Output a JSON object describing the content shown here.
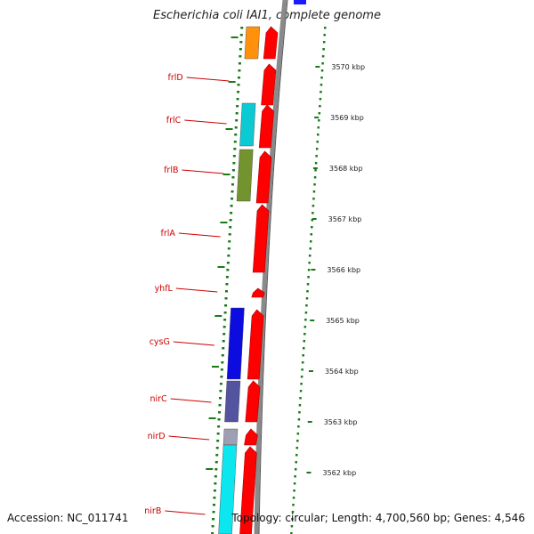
{
  "title": "Escherichia coli IAI1, complete genome",
  "footer": {
    "accession": "Accession: NC_011741",
    "summary": "Topology: circular; Length: 4,700,560 bp; Genes: 4,546"
  },
  "colors": {
    "strand": "#ff0000",
    "backbone": "#8a8a8a",
    "tick": "#1a7a1a",
    "label": "#cc0000"
  },
  "scale": {
    "unit": "kbp",
    "ticks": [
      {
        "kbp": 3570,
        "label": "3570 kbp"
      },
      {
        "kbp": 3569,
        "label": "3569 kbp"
      },
      {
        "kbp": 3568,
        "label": "3568 kbp"
      },
      {
        "kbp": 3567,
        "label": "3567 kbp"
      },
      {
        "kbp": 3566,
        "label": "3566 kbp"
      },
      {
        "kbp": 3565,
        "label": "3565 kbp"
      },
      {
        "kbp": 3564,
        "label": "3564 kbp"
      },
      {
        "kbp": 3563,
        "label": "3563 kbp"
      },
      {
        "kbp": 3562,
        "label": "3562 kbp"
      }
    ]
  },
  "genes": [
    {
      "name": "frlD",
      "color": "#ff8c00"
    },
    {
      "name": "frlC",
      "color": "#00c8d2"
    },
    {
      "name": "frlB",
      "color": "#6b8e23"
    },
    {
      "name": "frlA",
      "color": ""
    },
    {
      "name": "yhfL",
      "color": ""
    },
    {
      "name": "cysG",
      "color": "#0000e0"
    },
    {
      "name": "nirC",
      "color": "#4a4a9a"
    },
    {
      "name": "nirD",
      "color": "#9a9ab0"
    },
    {
      "name": "nirB",
      "color": "#00e5ee"
    }
  ]
}
